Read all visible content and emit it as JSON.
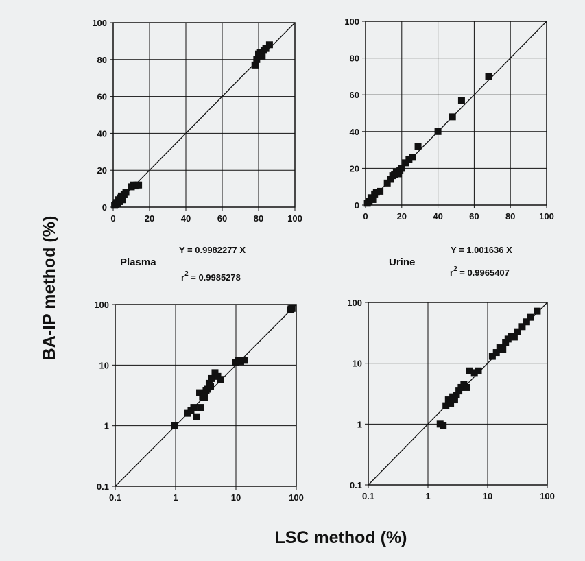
{
  "page": {
    "ylabel": "BA-IP method (%)",
    "xlabel": "LSC method (%)"
  },
  "chart_data": [
    {
      "type": "scatter",
      "label": "Plasma",
      "equation": "Y = 0.9982277 X",
      "r2_prefix": "r",
      "r2_sup": "2",
      "r2_value": " = 0.9985278",
      "scale": "linear",
      "xlim": [
        0,
        100
      ],
      "ylim": [
        0,
        100
      ],
      "xticks": [
        "0",
        "20",
        "40",
        "60",
        "80",
        "100"
      ],
      "yticks": [
        "0",
        "20",
        "40",
        "60",
        "80",
        "100"
      ],
      "grid": true,
      "identity_line": true,
      "points": [
        [
          0.8,
          1
        ],
        [
          1.5,
          1.5
        ],
        [
          2,
          2.5
        ],
        [
          2.5,
          2
        ],
        [
          3,
          4
        ],
        [
          3.5,
          3
        ],
        [
          4,
          5
        ],
        [
          4.5,
          6
        ],
        [
          5,
          4
        ],
        [
          6,
          7
        ],
        [
          7,
          8
        ],
        [
          10,
          11
        ],
        [
          11,
          12
        ],
        [
          12,
          11.5
        ],
        [
          13,
          12
        ],
        [
          14,
          12
        ],
        [
          78,
          77
        ],
        [
          79,
          80
        ],
        [
          80,
          83
        ],
        [
          81,
          84
        ],
        [
          82,
          82
        ],
        [
          83,
          85
        ],
        [
          84,
          86
        ],
        [
          86,
          88
        ]
      ]
    },
    {
      "type": "scatter",
      "label": "Urine",
      "equation": "Y = 1.001636 X",
      "r2_prefix": "r",
      "r2_sup": "2",
      "r2_value": " = 0.9965407",
      "scale": "linear",
      "xlim": [
        0,
        100
      ],
      "ylim": [
        0,
        100
      ],
      "xticks": [
        "0",
        "20",
        "40",
        "60",
        "80",
        "100"
      ],
      "yticks": [
        "0",
        "20",
        "40",
        "60",
        "80",
        "100"
      ],
      "grid": true,
      "identity_line": true,
      "points": [
        [
          1,
          1
        ],
        [
          2,
          2
        ],
        [
          3,
          4
        ],
        [
          4,
          3
        ],
        [
          5,
          6
        ],
        [
          6,
          7
        ],
        [
          8,
          7.5
        ],
        [
          12,
          12
        ],
        [
          14,
          14
        ],
        [
          15,
          16
        ],
        [
          16,
          16.5
        ],
        [
          17,
          18
        ],
        [
          18,
          17
        ],
        [
          19,
          19
        ],
        [
          20,
          20
        ],
        [
          22,
          23
        ],
        [
          24,
          25
        ],
        [
          26,
          26
        ],
        [
          29,
          32
        ],
        [
          40,
          40
        ],
        [
          48,
          48
        ],
        [
          53,
          57
        ],
        [
          68,
          70
        ]
      ]
    },
    {
      "type": "scatter",
      "label": "",
      "scale": "log",
      "xlim": [
        0.1,
        100
      ],
      "ylim": [
        0.1,
        100
      ],
      "xticks": [
        "0.1",
        "1",
        "10",
        "100"
      ],
      "yticks": [
        "0.1",
        "1",
        "10",
        "100"
      ],
      "grid": true,
      "identity_line": true,
      "points": [
        [
          0.95,
          1
        ],
        [
          1.6,
          1.6
        ],
        [
          1.8,
          1.8
        ],
        [
          2,
          2
        ],
        [
          2.2,
          1.4
        ],
        [
          2.5,
          3.5
        ],
        [
          2.6,
          2
        ],
        [
          2.8,
          3
        ],
        [
          3,
          2.9
        ],
        [
          3.2,
          3.8
        ],
        [
          3.4,
          4
        ],
        [
          3.6,
          5
        ],
        [
          3.8,
          4.5
        ],
        [
          4,
          6
        ],
        [
          4.5,
          7.5
        ],
        [
          5,
          6.5
        ],
        [
          5.5,
          5.8
        ],
        [
          10,
          11
        ],
        [
          11,
          12
        ],
        [
          12,
          11.5
        ],
        [
          14,
          12
        ],
        [
          80,
          82
        ],
        [
          82,
          85
        ],
        [
          85,
          86
        ]
      ]
    },
    {
      "type": "scatter",
      "label": "",
      "scale": "log",
      "xlim": [
        0.1,
        100
      ],
      "ylim": [
        0.1,
        100
      ],
      "xticks": [
        "0.1",
        "1",
        "10",
        "100"
      ],
      "yticks": [
        "0.1",
        "1",
        "10",
        "100"
      ],
      "grid": true,
      "identity_line": true,
      "points": [
        [
          1.6,
          1
        ],
        [
          1.8,
          0.95
        ],
        [
          2,
          2
        ],
        [
          2.2,
          2.5
        ],
        [
          2.4,
          2.2
        ],
        [
          2.6,
          2.8
        ],
        [
          2.8,
          2.5
        ],
        [
          3,
          3
        ],
        [
          3.3,
          3.5
        ],
        [
          3.6,
          4
        ],
        [
          4,
          4.5
        ],
        [
          4.5,
          4
        ],
        [
          5,
          7.5
        ],
        [
          6,
          7
        ],
        [
          7,
          7.5
        ],
        [
          12,
          13
        ],
        [
          14,
          15
        ],
        [
          16,
          18
        ],
        [
          18,
          17
        ],
        [
          20,
          22
        ],
        [
          22,
          25
        ],
        [
          25,
          28
        ],
        [
          28,
          27
        ],
        [
          32,
          33
        ],
        [
          38,
          40
        ],
        [
          45,
          48
        ],
        [
          52,
          57
        ],
        [
          68,
          72
        ]
      ]
    }
  ]
}
